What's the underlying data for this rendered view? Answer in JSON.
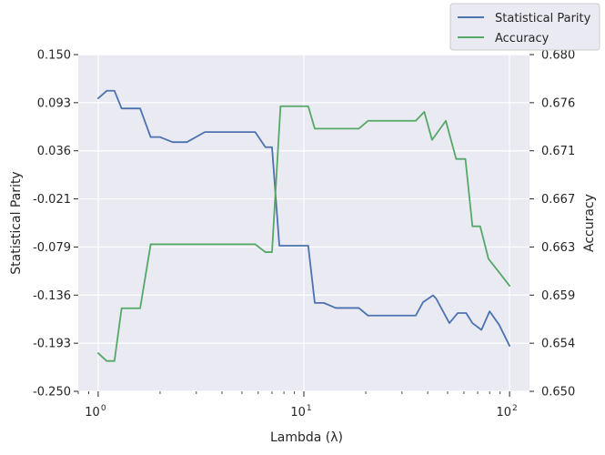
{
  "chart_data": {
    "type": "line",
    "xlabel": "Lambda (λ)",
    "ylabel": "Statistical Parity",
    "ylabel_right": "Accuracy",
    "xscale": "log",
    "xlim": [
      0.8,
      125
    ],
    "ylim": [
      -0.25,
      0.15
    ],
    "ylim_right": [
      0.65,
      0.68
    ],
    "grid": true,
    "legend_position": "top-right, outside plot",
    "x_ticks": [
      {
        "value": 1,
        "base": "10",
        "exp": "0"
      },
      {
        "value": 10,
        "base": "10",
        "exp": "1"
      },
      {
        "value": 100,
        "base": "10",
        "exp": "2"
      }
    ],
    "y_ticks_left": [
      "0.150",
      "0.093",
      "0.036",
      "-0.021",
      "-0.079",
      "-0.136",
      "-0.193",
      "-0.250"
    ],
    "y_ticks_right": [
      "0.680",
      "0.676",
      "0.671",
      "0.667",
      "0.663",
      "0.659",
      "0.654",
      "0.650"
    ],
    "series": [
      {
        "name": "Statistical Parity",
        "axis": "left",
        "color": "#4c72b0",
        "x": [
          1.0,
          1.1,
          1.2,
          1.3,
          1.45,
          1.6,
          1.8,
          2.0,
          2.3,
          2.7,
          3.3,
          4.3,
          5.8,
          6.5,
          7.0,
          7.6,
          8.5,
          10.5,
          11.3,
          12.5,
          14.3,
          18.5,
          20.5,
          35.0,
          38.0,
          42.5,
          44.0,
          51.0,
          56.0,
          61.5,
          66.0,
          73.0,
          80.0,
          89.0,
          100.0
        ],
        "y": [
          0.098,
          0.107,
          0.107,
          0.086,
          0.086,
          0.086,
          0.052,
          0.052,
          0.046,
          0.046,
          0.058,
          0.058,
          0.058,
          0.04,
          0.04,
          -0.077,
          -0.077,
          -0.077,
          -0.145,
          -0.145,
          -0.151,
          -0.151,
          -0.16,
          -0.16,
          -0.144,
          -0.136,
          -0.14,
          -0.169,
          -0.157,
          -0.157,
          -0.169,
          -0.177,
          -0.155,
          -0.171,
          -0.196
        ]
      },
      {
        "name": "Accuracy",
        "axis": "right",
        "color": "#55a868",
        "x": [
          1.0,
          1.1,
          1.2,
          1.3,
          1.45,
          1.6,
          1.8,
          2.0,
          3.0,
          4.5,
          5.8,
          6.5,
          7.0,
          7.7,
          8.5,
          10.5,
          11.3,
          13.0,
          18.5,
          20.5,
          26.0,
          35.0,
          38.5,
          42.0,
          49.0,
          55.0,
          61.0,
          66.0,
          72.0,
          79.0,
          89.0,
          100.0
        ],
        "y": [
          0.6534,
          0.6527,
          0.6527,
          0.6574,
          0.6574,
          0.6574,
          0.6631,
          0.6631,
          0.6631,
          0.6631,
          0.6631,
          0.6624,
          0.6624,
          0.6754,
          0.6754,
          0.6754,
          0.6734,
          0.6734,
          0.6734,
          0.6741,
          0.6741,
          0.6741,
          0.6749,
          0.6724,
          0.6741,
          0.6707,
          0.6707,
          0.6647,
          0.6647,
          0.6618,
          0.6606,
          0.6594
        ]
      }
    ]
  }
}
